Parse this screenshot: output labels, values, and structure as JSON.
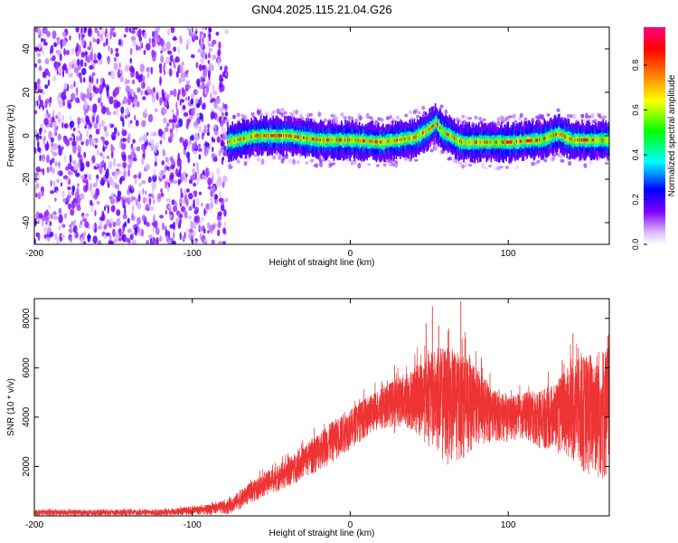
{
  "title": "GN04.2025.115.21.04.G26",
  "chart_data": [
    {
      "type": "heatmap",
      "name": "spectrogram",
      "xlabel": "Height of straight line (km)",
      "ylabel": "Frequency (Hz)",
      "xlim": [
        -200,
        164
      ],
      "ylim": [
        -50,
        50
      ],
      "xticks": [
        -200,
        -100,
        0,
        100
      ],
      "yticks": [
        -40,
        -20,
        0,
        20,
        40
      ],
      "colorbar": {
        "label": "Normalized spectral amplitude",
        "ticks": [
          0.0,
          0.2,
          0.4,
          0.6,
          0.8
        ],
        "range": [
          0,
          0.97
        ],
        "colors": [
          "#ffffff",
          "#7f00ff",
          "#0000ff",
          "#00ffff",
          "#00ff00",
          "#ffff00",
          "#ff7f00",
          "#ff0000",
          "#ff0080"
        ]
      },
      "features": {
        "noise_region_x": [
          -200,
          -78
        ],
        "signal_track_freq_hz": [
          [
            -78,
            -3
          ],
          [
            -60,
            0
          ],
          [
            -40,
            0
          ],
          [
            -20,
            -2
          ],
          [
            0,
            -2
          ],
          [
            20,
            -3
          ],
          [
            40,
            -1
          ],
          [
            50,
            3
          ],
          [
            54,
            6
          ],
          [
            58,
            2
          ],
          [
            70,
            -3
          ],
          [
            100,
            -3
          ],
          [
            120,
            -2
          ],
          [
            132,
            1
          ],
          [
            140,
            -2
          ],
          [
            164,
            -2
          ]
        ]
      }
    },
    {
      "type": "line",
      "name": "snr",
      "xlabel": "Height of straight line (km)",
      "ylabel": "SNR (10 * v/v)",
      "xlim": [
        -200,
        164
      ],
      "ylim": [
        0,
        8800
      ],
      "xticks": [
        -200,
        -100,
        0,
        100
      ],
      "yticks": [
        2000,
        4000,
        6000,
        8000
      ],
      "color": "#ee3333",
      "envelope": {
        "x": [
          -200,
          -120,
          -90,
          -78,
          -70,
          -60,
          -50,
          -40,
          -30,
          -20,
          -10,
          0,
          10,
          20,
          30,
          40,
          50,
          60,
          70,
          80,
          90,
          100,
          110,
          120,
          130,
          140,
          150,
          164
        ],
        "low": [
          0,
          0,
          30,
          60,
          250,
          600,
          900,
          1100,
          1500,
          1800,
          2200,
          2700,
          3200,
          3500,
          3600,
          3400,
          2800,
          2000,
          2200,
          2700,
          3000,
          3000,
          3100,
          2700,
          2600,
          2100,
          1500,
          1200
        ],
        "high": [
          250,
          250,
          450,
          650,
          1000,
          1500,
          1900,
          2300,
          2800,
          3400,
          3900,
          4300,
          4800,
          5200,
          5600,
          6000,
          6600,
          6900,
          6600,
          6000,
          5200,
          4800,
          5000,
          5100,
          5400,
          6200,
          6600,
          7000
        ]
      },
      "peaks": [
        [
          48,
          7800
        ],
        [
          52,
          8500
        ],
        [
          56,
          7700
        ],
        [
          70,
          8700
        ],
        [
          62,
          7500
        ],
        [
          141,
          7400
        ],
        [
          163,
          7300
        ],
        [
          28,
          6100
        ],
        [
          83,
          6400
        ]
      ]
    }
  ]
}
